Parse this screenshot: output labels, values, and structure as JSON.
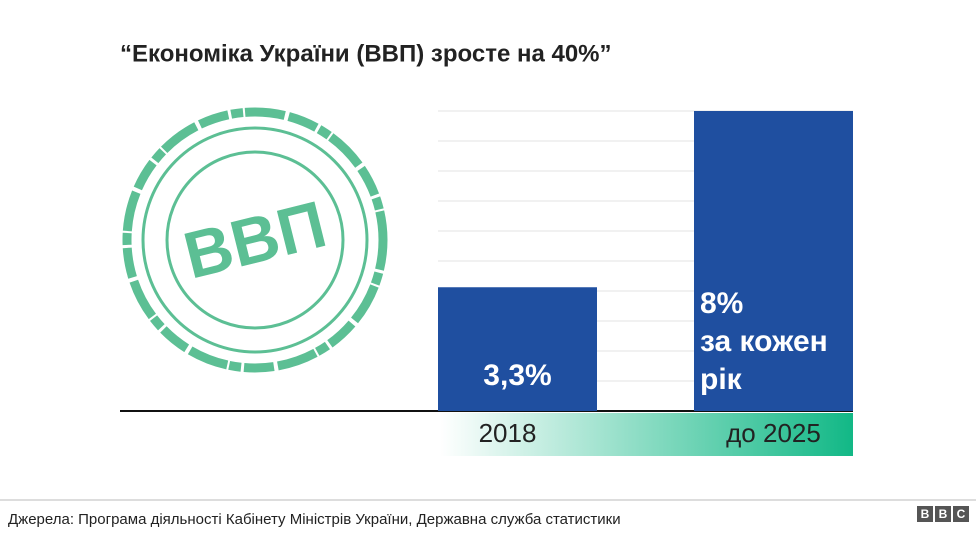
{
  "chart_data": {
    "type": "bar",
    "title": "“Економіка України (ВВП) зросте на 40%”",
    "categories": [
      "2018",
      "до 2025"
    ],
    "values": [
      3.3,
      8
    ],
    "value_labels": [
      "3,3%",
      "8%"
    ],
    "annotation": [
      "за кожен",
      "рік"
    ],
    "color": "#1f4fa0",
    "ylim": [
      0,
      8
    ],
    "stamp_text": "ВВП",
    "source": "Джерела: Програма діяльності Кабінету Міністрів України, Державна служба статистики",
    "logo": [
      "B",
      "B",
      "C"
    ]
  }
}
